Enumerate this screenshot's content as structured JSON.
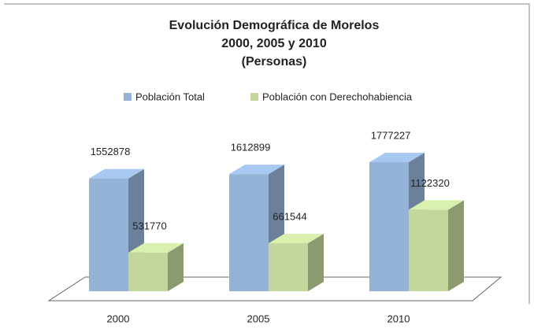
{
  "chart_data": {
    "type": "bar3d",
    "title_lines": [
      "Evolución Demográfica de Morelos",
      "2000, 2005 y 2010",
      "(Personas)"
    ],
    "categories": [
      "2000",
      "2005",
      "2010"
    ],
    "series": [
      {
        "name": "Población Total",
        "color": "#95b3d7",
        "values": [
          1552878,
          1612899,
          1777227
        ]
      },
      {
        "name": "Población con Derechohabiencia",
        "color": "#c3d69b",
        "values": [
          531770,
          661544,
          1122320
        ]
      }
    ],
    "legend": "top"
  }
}
